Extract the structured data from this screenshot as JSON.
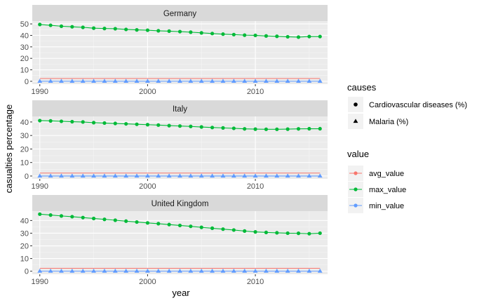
{
  "chart_data": {
    "type": "line",
    "xlabel": "year",
    "ylabel": "casualties percentage",
    "xlim": [
      1989.3,
      2016.7
    ],
    "x_ticks": [
      1990,
      2000,
      2010
    ],
    "grid": true,
    "legend_placement": "right",
    "facets": [
      {
        "title": "Germany",
        "ylim": [
          -2.5,
          52.5
        ],
        "y_ticks": [
          0,
          10,
          20,
          30,
          40,
          50
        ],
        "series": [
          {
            "cause": "Cardiovascular diseases (%)",
            "value": "max_value",
            "x": [
              1990,
              1991,
              1992,
              1993,
              1994,
              1995,
              1996,
              1997,
              1998,
              1999,
              2000,
              2001,
              2002,
              2003,
              2004,
              2005,
              2006,
              2007,
              2008,
              2009,
              2010,
              2011,
              2012,
              2013,
              2014,
              2015,
              2016
            ],
            "y": [
              49.5,
              48.8,
              48.0,
              47.5,
              47.0,
              46.3,
              46.0,
              45.8,
              45.2,
              44.8,
              44.5,
              44.0,
              43.7,
              43.3,
              42.8,
              42.2,
              41.6,
              41.1,
              40.7,
              40.2,
              40.0,
              39.5,
              39.2,
              38.8,
              38.5,
              39.0,
              39.0
            ]
          },
          {
            "cause": "Malaria (%)",
            "value": "min_value",
            "x": [
              1990,
              1991,
              1992,
              1993,
              1994,
              1995,
              1996,
              1997,
              1998,
              1999,
              2000,
              2001,
              2002,
              2003,
              2004,
              2005,
              2006,
              2007,
              2008,
              2009,
              2010,
              2011,
              2012,
              2013,
              2014,
              2015,
              2016
            ],
            "y": [
              0.02,
              0.02,
              0.02,
              0.02,
              0.02,
              0.02,
              0.02,
              0.02,
              0.02,
              0.02,
              0.02,
              0.02,
              0.02,
              0.02,
              0.02,
              0.02,
              0.02,
              0.02,
              0.02,
              0.02,
              0.02,
              0.02,
              0.02,
              0.02,
              0.02,
              0.02,
              0.02
            ]
          }
        ],
        "avg_value": 2.5
      },
      {
        "title": "Italy",
        "ylim": [
          -2.1,
          44.1
        ],
        "y_ticks": [
          0,
          10,
          20,
          30,
          40
        ],
        "series": [
          {
            "cause": "Cardiovascular diseases (%)",
            "value": "max_value",
            "x": [
              1990,
              1991,
              1992,
              1993,
              1994,
              1995,
              1996,
              1997,
              1998,
              1999,
              2000,
              2001,
              2002,
              2003,
              2004,
              2005,
              2006,
              2007,
              2008,
              2009,
              2010,
              2011,
              2012,
              2013,
              2014,
              2015,
              2016
            ],
            "y": [
              41.0,
              40.8,
              40.5,
              40.2,
              40.0,
              39.5,
              39.2,
              38.9,
              38.6,
              38.3,
              38.0,
              37.7,
              37.3,
              37.0,
              36.7,
              36.3,
              35.9,
              35.6,
              35.3,
              34.9,
              34.7,
              34.6,
              34.6,
              34.7,
              34.9,
              35.0,
              35.0
            ]
          },
          {
            "cause": "Malaria (%)",
            "value": "min_value",
            "x": [
              1990,
              1991,
              1992,
              1993,
              1994,
              1995,
              1996,
              1997,
              1998,
              1999,
              2000,
              2001,
              2002,
              2003,
              2004,
              2005,
              2006,
              2007,
              2008,
              2009,
              2010,
              2011,
              2012,
              2013,
              2014,
              2015,
              2016
            ],
            "y": [
              0.02,
              0.02,
              0.02,
              0.02,
              0.02,
              0.02,
              0.02,
              0.02,
              0.02,
              0.02,
              0.02,
              0.02,
              0.02,
              0.02,
              0.02,
              0.02,
              0.02,
              0.02,
              0.02,
              0.02,
              0.02,
              0.02,
              0.02,
              0.02,
              0.02,
              0.02,
              0.02
            ]
          }
        ],
        "avg_value": 2.2
      },
      {
        "title": "United Kingdom",
        "ylim": [
          -2.4,
          47.4
        ],
        "y_ticks": [
          0,
          10,
          20,
          30,
          40
        ],
        "series": [
          {
            "cause": "Cardiovascular diseases (%)",
            "value": "max_value",
            "x": [
              1990,
              1991,
              1992,
              1993,
              1994,
              1995,
              1996,
              1997,
              1998,
              1999,
              2000,
              2001,
              2002,
              2003,
              2004,
              2005,
              2006,
              2007,
              2008,
              2009,
              2010,
              2011,
              2012,
              2013,
              2014,
              2015,
              2016
            ],
            "y": [
              45.0,
              44.3,
              43.6,
              43.0,
              42.3,
              41.6,
              40.9,
              40.2,
              39.5,
              38.8,
              38.1,
              37.5,
              36.8,
              36.1,
              35.4,
              34.6,
              33.9,
              33.2,
              32.5,
              31.7,
              31.0,
              30.6,
              30.3,
              30.0,
              29.9,
              29.6,
              30.0
            ]
          },
          {
            "cause": "Malaria (%)",
            "value": "min_value",
            "x": [
              1990,
              1991,
              1992,
              1993,
              1994,
              1995,
              1996,
              1997,
              1998,
              1999,
              2000,
              2001,
              2002,
              2003,
              2004,
              2005,
              2006,
              2007,
              2008,
              2009,
              2010,
              2011,
              2012,
              2013,
              2014,
              2015,
              2016
            ],
            "y": [
              0.02,
              0.02,
              0.02,
              0.02,
              0.02,
              0.02,
              0.02,
              0.02,
              0.02,
              0.02,
              0.02,
              0.02,
              0.02,
              0.02,
              0.02,
              0.02,
              0.02,
              0.02,
              0.02,
              0.02,
              0.02,
              0.02,
              0.02,
              0.02,
              0.02,
              0.02,
              0.02
            ]
          }
        ],
        "avg_value": 2.3
      }
    ],
    "legends": {
      "causes": {
        "title": "causes",
        "entries": [
          {
            "label": "Cardiovascular diseases (%)",
            "shape": "circle"
          },
          {
            "label": "Malaria (%)",
            "shape": "triangle"
          }
        ]
      },
      "value": {
        "title": "value",
        "entries": [
          {
            "label": "avg_value",
            "color": "#F8766D"
          },
          {
            "label": "max_value",
            "color": "#00BA38"
          },
          {
            "label": "min_value",
            "color": "#619CFF"
          }
        ]
      }
    },
    "colors": {
      "panel_bg": "#EBEBEB",
      "strip_bg": "#D9D9D9",
      "grid_major": "#FFFFFF",
      "grid_minor": "#F5F5F5"
    }
  }
}
